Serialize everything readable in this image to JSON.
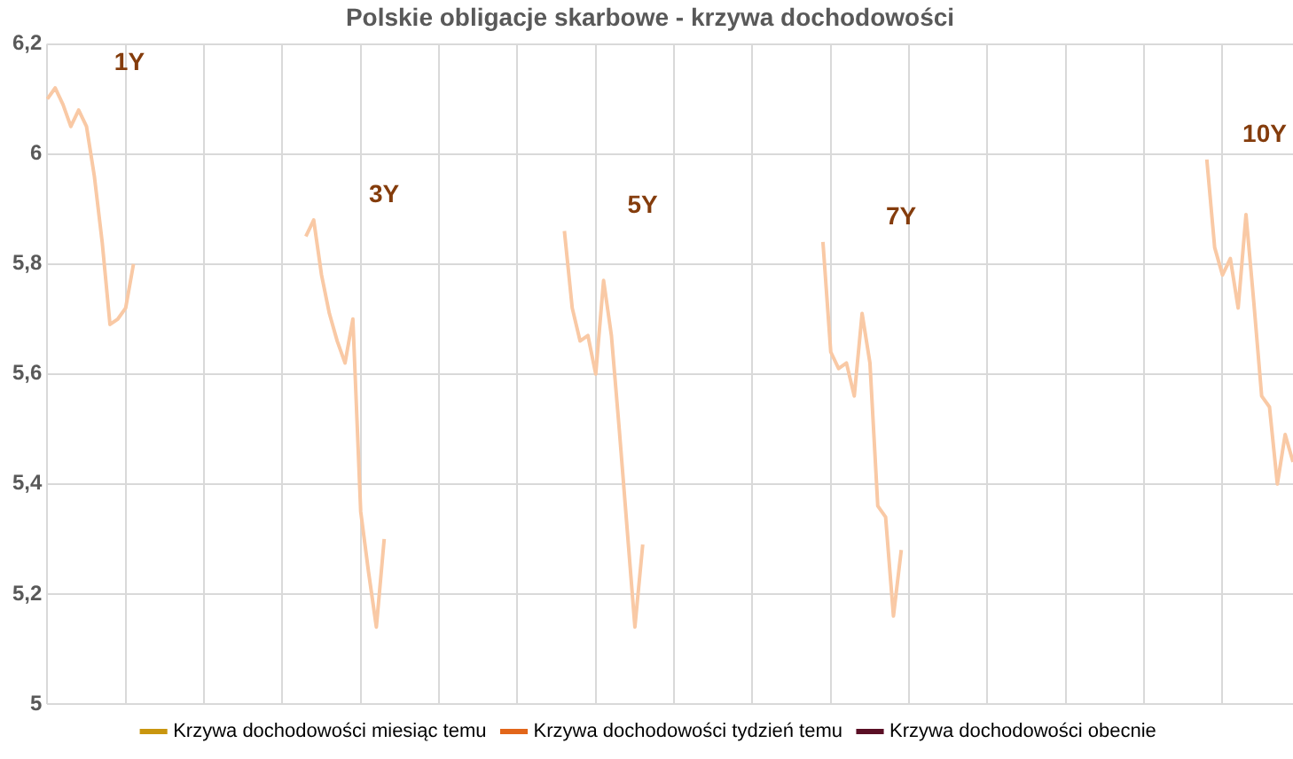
{
  "chart_data": {
    "type": "line",
    "title": "Polskie obligacje skarbowe - krzywa dochodowości",
    "categories": [
      null,
      null,
      null,
      null,
      null,
      null,
      null,
      null,
      null,
      null,
      null,
      null,
      null,
      null,
      null,
      null,
      null,
      null,
      null,
      null,
      null,
      null,
      null,
      null,
      null,
      null,
      null,
      null,
      null,
      null,
      null,
      null,
      null,
      null,
      null,
      null,
      null,
      null,
      null,
      null,
      null,
      null,
      null,
      null,
      null,
      null,
      null,
      null,
      null,
      null,
      null,
      null,
      null,
      null,
      null,
      null,
      null,
      null,
      null,
      null,
      null,
      null,
      null,
      null,
      null,
      null,
      null,
      null,
      null,
      null,
      null,
      null,
      null,
      null,
      null,
      null,
      null,
      null,
      null,
      null,
      null,
      null,
      null,
      null,
      null,
      null,
      null,
      null,
      null,
      null,
      null,
      null,
      null,
      null,
      null,
      null,
      null,
      null,
      null,
      null,
      null,
      null,
      null,
      null,
      null,
      null,
      null,
      null,
      null,
      null,
      null,
      null,
      null,
      null,
      null,
      null,
      null,
      null,
      null,
      null,
      null,
      null,
      null,
      null,
      null,
      null,
      null,
      null,
      null,
      null,
      null,
      null,
      null,
      null,
      null,
      null,
      null,
      null,
      null,
      null,
      null,
      null,
      null,
      null,
      null,
      null,
      null,
      null,
      null,
      null,
      null,
      null,
      null,
      null,
      null,
      null,
      null,
      null,
      null,
      null
    ],
    "series": [
      {
        "color": "#f9c9a5",
        "values": [
          6.1,
          6.12,
          6.09,
          6.05,
          6.08,
          6.05,
          5.96,
          5.84,
          5.69,
          5.7,
          5.72,
          5.8,
          null,
          null,
          null,
          null,
          null,
          null,
          null,
          null,
          null,
          null,
          null,
          null,
          null,
          null,
          null,
          null,
          null,
          null,
          null,
          null,
          null,
          5.85,
          5.88,
          5.78,
          5.71,
          5.66,
          5.62,
          5.7,
          5.35,
          5.24,
          5.14,
          5.3,
          null,
          null,
          null,
          null,
          null,
          null,
          null,
          null,
          null,
          null,
          null,
          null,
          null,
          null,
          null,
          null,
          null,
          null,
          null,
          null,
          null,
          null,
          5.86,
          5.72,
          5.66,
          5.67,
          5.6,
          5.77,
          5.67,
          5.5,
          5.32,
          5.14,
          5.29,
          null,
          null,
          null,
          null,
          null,
          null,
          null,
          null,
          null,
          null,
          null,
          null,
          null,
          null,
          null,
          null,
          null,
          null,
          null,
          null,
          null,
          null,
          5.84,
          5.64,
          5.61,
          5.62,
          5.56,
          5.71,
          5.62,
          5.36,
          5.34,
          5.16,
          5.28,
          null,
          null,
          null,
          null,
          null,
          null,
          null,
          null,
          null,
          null,
          null,
          null,
          null,
          null,
          null,
          null,
          null,
          null,
          null,
          null,
          null,
          null,
          null,
          null,
          null,
          null,
          null,
          null,
          null,
          null,
          null,
          null,
          null,
          null,
          null,
          null,
          null,
          null,
          5.99,
          5.83,
          5.78,
          5.81,
          5.72,
          5.89,
          5.73,
          5.56,
          5.54,
          5.4,
          5.49,
          5.44
        ]
      },
      {
        "name": "Krzywa dochodowości miesiąc temu",
        "color": "#c9960f",
        "values": [
          null,
          null,
          null,
          null,
          null,
          null,
          null,
          null,
          null,
          null,
          null,
          null,
          null,
          null,
          null,
          null,
          null,
          null,
          null,
          null,
          null,
          null,
          null,
          null,
          null,
          null,
          null,
          null,
          null,
          null,
          null,
          null,
          null,
          null,
          null,
          null,
          null,
          null,
          null,
          null,
          null,
          null,
          null,
          null,
          null,
          null,
          null,
          null,
          null,
          null,
          null,
          null,
          null,
          null,
          null,
          null,
          null,
          null,
          null,
          null,
          null,
          null,
          null,
          null,
          null,
          null,
          null,
          null,
          null,
          null,
          null,
          null,
          null,
          null,
          null,
          null,
          null,
          null,
          null,
          null,
          null,
          null,
          null,
          null,
          null,
          null,
          null,
          null,
          null,
          null,
          null,
          null,
          null,
          null,
          null,
          null,
          null,
          null,
          null,
          null,
          null,
          null,
          null,
          null,
          null,
          null,
          null,
          null,
          null,
          null,
          null,
          null,
          null,
          null,
          null,
          null,
          null,
          null,
          null,
          null,
          null,
          null,
          null,
          null,
          null,
          null,
          null,
          null,
          null,
          null,
          null,
          null,
          null,
          null,
          null,
          null,
          null,
          null,
          null,
          null,
          null,
          null,
          null,
          null,
          null,
          null,
          null,
          null,
          null,
          null,
          null,
          null,
          null,
          null,
          null,
          null,
          null,
          null,
          null,
          null
        ]
      },
      {
        "name": "Krzywa dochodowości tydzień temu",
        "color": "#e2661a",
        "values": [
          null,
          null,
          null,
          null,
          null,
          null,
          null,
          null,
          null,
          null,
          null,
          null,
          null,
          null,
          null,
          null,
          null,
          null,
          null,
          null,
          null,
          null,
          null,
          null,
          null,
          null,
          null,
          null,
          null,
          null,
          null,
          null,
          null,
          null,
          null,
          null,
          null,
          null,
          null,
          null,
          null,
          null,
          null,
          null,
          null,
          null,
          null,
          null,
          null,
          null,
          null,
          null,
          null,
          null,
          null,
          null,
          null,
          null,
          null,
          null,
          null,
          null,
          null,
          null,
          null,
          null,
          null,
          null,
          null,
          null,
          null,
          null,
          null,
          null,
          null,
          null,
          null,
          null,
          null,
          null,
          null,
          null,
          null,
          null,
          null,
          null,
          null,
          null,
          null,
          null,
          null,
          null,
          null,
          null,
          null,
          null,
          null,
          null,
          null,
          null,
          null,
          null,
          null,
          null,
          null,
          null,
          null,
          null,
          null,
          null,
          null,
          null,
          null,
          null,
          null,
          null,
          null,
          null,
          null,
          null,
          null,
          null,
          null,
          null,
          null,
          null,
          null,
          null,
          null,
          null,
          null,
          null,
          null,
          null,
          null,
          null,
          null,
          null,
          null,
          null,
          null,
          null,
          null,
          null,
          null,
          null,
          null,
          null,
          null,
          null,
          null,
          null,
          null,
          null,
          null,
          null,
          null,
          null,
          null,
          null
        ]
      },
      {
        "name": "Krzywa dochodowości obecnie",
        "color": "#5a0f25",
        "values": [
          null,
          null,
          null,
          null,
          null,
          null,
          null,
          null,
          null,
          null,
          null,
          null,
          null,
          null,
          null,
          null,
          null,
          null,
          null,
          null,
          null,
          null,
          null,
          null,
          null,
          null,
          null,
          null,
          null,
          null,
          null,
          null,
          null,
          null,
          null,
          null,
          null,
          null,
          null,
          null,
          null,
          null,
          null,
          null,
          null,
          null,
          null,
          null,
          null,
          null,
          null,
          null,
          null,
          null,
          null,
          null,
          null,
          null,
          null,
          null,
          null,
          null,
          null,
          null,
          null,
          null,
          null,
          null,
          null,
          null,
          null,
          null,
          null,
          null,
          null,
          null,
          null,
          null,
          null,
          null,
          null,
          null,
          null,
          null,
          null,
          null,
          null,
          null,
          null,
          null,
          null,
          null,
          null,
          null,
          null,
          null,
          null,
          null,
          null,
          null,
          null,
          null,
          null,
          null,
          null,
          null,
          null,
          null,
          null,
          null,
          null,
          null,
          null,
          null,
          null,
          null,
          null,
          null,
          null,
          null,
          null,
          null,
          null,
          null,
          null,
          null,
          null,
          null,
          null,
          null,
          null,
          null,
          null,
          null,
          null,
          null,
          null,
          null,
          null,
          null,
          null,
          null,
          null,
          null,
          null,
          null,
          null,
          null,
          null,
          null,
          null,
          null,
          null,
          null,
          null,
          null,
          null,
          null,
          null,
          null
        ]
      }
    ],
    "ylim": [
      5,
      6.2
    ],
    "yticks": [
      5,
      {
        "value": 5.2,
        "label": "5,2"
      },
      {
        "value": 5.4,
        "label": "5,4"
      },
      {
        "value": 5.6,
        "label": "5,6"
      },
      {
        "value": 5.8,
        "label": "5,8"
      },
      6,
      {
        "value": 6.2,
        "label": "6,2"
      }
    ],
    "annotations": [
      "1Y",
      "3Y",
      "5Y",
      "7Y",
      "10Y"
    ],
    "grid": true,
    "legend": "bottom",
    "marker": "none",
    "line_style": "solid"
  }
}
